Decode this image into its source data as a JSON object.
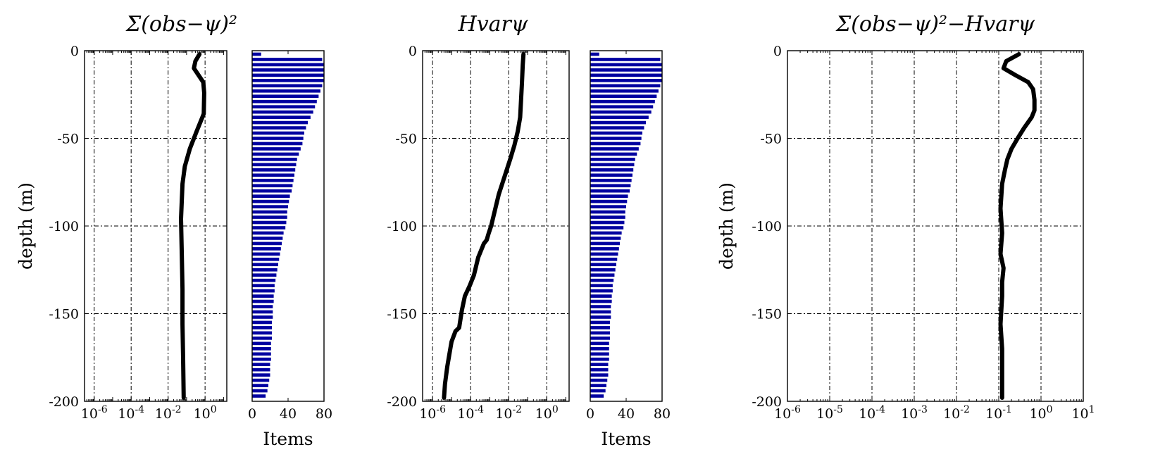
{
  "chart_data": [
    {
      "type": "line",
      "title": "Σ(obs−ψ)²",
      "xlabel": "",
      "ylabel": "depth (m)",
      "xscale": "log",
      "xlim": [
        3e-07,
        15
      ],
      "ylim": [
        -200,
        0
      ],
      "grid": true,
      "yticks": [
        "0",
        "-50",
        "-100",
        "-150",
        "-200"
      ],
      "xticks": [
        "10-6",
        "10-4",
        "10-2",
        "100"
      ],
      "series": [
        {
          "color": "#000000",
          "x": [
            0.5,
            0.3,
            0.25,
            0.45,
            0.8,
            0.9,
            0.85,
            0.35,
            0.15,
            0.08,
            0.06,
            0.05,
            0.055,
            0.06,
            0.06,
            0.065,
            0.07
          ],
          "y": [
            -2,
            -6,
            -10,
            -14,
            -18,
            -24,
            -36,
            -46,
            -56,
            -66,
            -76,
            -96,
            -116,
            -136,
            -156,
            -176,
            -198
          ]
        }
      ]
    },
    {
      "type": "bar",
      "orientation": "horizontal",
      "title": "",
      "xlabel": "Items",
      "ylabel": "",
      "xlim": [
        0,
        80
      ],
      "ylim": [
        -200,
        0
      ],
      "xticks": [
        "0",
        "40",
        "80"
      ],
      "color": "#0000a0",
      "depths": [
        -2,
        -5,
        -8,
        -11,
        -14,
        -17,
        -20,
        -23,
        -26,
        -29,
        -32,
        -35,
        -38,
        -41,
        -44,
        -47,
        -50,
        -53,
        -56,
        -59,
        -62,
        -65,
        -68,
        -71,
        -74,
        -77,
        -80,
        -83,
        -86,
        -89,
        -92,
        -95,
        -98,
        -101,
        -104,
        -107,
        -110,
        -113,
        -116,
        -119,
        -122,
        -125,
        -128,
        -131,
        -134,
        -137,
        -140,
        -143,
        -146,
        -149,
        -152,
        -155,
        -158,
        -161,
        -164,
        -167,
        -170,
        -173,
        -176,
        -179,
        -182,
        -185,
        -188,
        -191,
        -194,
        -197
      ],
      "values": [
        10,
        78,
        80,
        80,
        80,
        80,
        78,
        76,
        74,
        72,
        70,
        68,
        65,
        62,
        60,
        58,
        57,
        56,
        54,
        52,
        50,
        49,
        48,
        47,
        46,
        45,
        44,
        42,
        41,
        40,
        39,
        39,
        38,
        37,
        35,
        34,
        33,
        32,
        31,
        30,
        29,
        28,
        27,
        26,
        25,
        25,
        24,
        24,
        23,
        23,
        23,
        22,
        22,
        22,
        22,
        21,
        21,
        21,
        21,
        20,
        20,
        20,
        19,
        18,
        17,
        15
      ]
    },
    {
      "type": "line",
      "title": "Hvarψ",
      "xlabel": "",
      "ylabel": "",
      "xscale": "log",
      "xlim": [
        3e-07,
        15
      ],
      "ylim": [
        -200,
        0
      ],
      "grid": true,
      "yticks": [
        "0",
        "-50",
        "-100",
        "-150",
        "-200"
      ],
      "xticks": [
        "10-6",
        "10-4",
        "10-2",
        "100"
      ],
      "series": [
        {
          "color": "#000000",
          "x": [
            0.06,
            0.055,
            0.05,
            0.045,
            0.04,
            0.03,
            0.02,
            0.012,
            0.006,
            0.003,
            0.0018,
            0.0012,
            0.0009,
            0.0007,
            0.0005,
            0.00025,
            0.00015,
            9e-05,
            5e-05,
            3.5e-05,
            2.5e-05,
            1.6e-05,
            1e-05,
            8e-06,
            6e-06,
            4.5e-06,
            4e-06
          ],
          "y": [
            -2,
            -8,
            -18,
            -28,
            -38,
            -46,
            -54,
            -62,
            -72,
            -82,
            -92,
            -100,
            -104,
            -108,
            -110,
            -118,
            -128,
            -134,
            -140,
            -148,
            -158,
            -160,
            -166,
            -172,
            -180,
            -190,
            -198
          ]
        }
      ]
    },
    {
      "type": "bar",
      "orientation": "horizontal",
      "title": "",
      "xlabel": "Items",
      "ylabel": "",
      "xlim": [
        0,
        80
      ],
      "ylim": [
        -200,
        0
      ],
      "xticks": [
        "0",
        "40",
        "80"
      ],
      "color": "#0000a0",
      "depths": [
        -2,
        -5,
        -8,
        -11,
        -14,
        -17,
        -20,
        -23,
        -26,
        -29,
        -32,
        -35,
        -38,
        -41,
        -44,
        -47,
        -50,
        -53,
        -56,
        -59,
        -62,
        -65,
        -68,
        -71,
        -74,
        -77,
        -80,
        -83,
        -86,
        -89,
        -92,
        -95,
        -98,
        -101,
        -104,
        -107,
        -110,
        -113,
        -116,
        -119,
        -122,
        -125,
        -128,
        -131,
        -134,
        -137,
        -140,
        -143,
        -146,
        -149,
        -152,
        -155,
        -158,
        -161,
        -164,
        -167,
        -170,
        -173,
        -176,
        -179,
        -182,
        -185,
        -188,
        -191,
        -194,
        -197
      ],
      "values": [
        10,
        78,
        80,
        80,
        80,
        80,
        78,
        76,
        74,
        72,
        70,
        68,
        65,
        62,
        60,
        58,
        57,
        56,
        54,
        52,
        50,
        49,
        48,
        47,
        46,
        45,
        44,
        42,
        41,
        40,
        39,
        39,
        38,
        37,
        35,
        34,
        33,
        32,
        31,
        30,
        29,
        28,
        27,
        26,
        25,
        25,
        24,
        24,
        23,
        23,
        23,
        22,
        22,
        22,
        22,
        21,
        21,
        21,
        21,
        20,
        20,
        20,
        19,
        18,
        17,
        15
      ]
    },
    {
      "type": "line",
      "title": "Σ(obs−ψ)²−Hvarψ",
      "xlabel": "",
      "ylabel": "depth (m)",
      "xscale": "log",
      "xlim": [
        1e-06,
        10
      ],
      "ylim": [
        -200,
        0
      ],
      "grid": true,
      "yticks": [
        "0",
        "-50",
        "-100",
        "-150",
        "-200"
      ],
      "xticks": [
        "10-6",
        "10-5",
        "10-4",
        "10-3",
        "10-2",
        "10-1",
        "100",
        "101"
      ],
      "series": [
        {
          "color": "#000000",
          "x": [
            0.3,
            0.15,
            0.13,
            0.25,
            0.5,
            0.65,
            0.7,
            0.7,
            0.6,
            0.4,
            0.28,
            0.2,
            0.16,
            0.14,
            0.12,
            0.11,
            0.12,
            0.11,
            0.13,
            0.12,
            0.12,
            0.11,
            0.12,
            0.12,
            0.12
          ],
          "y": [
            -2,
            -6,
            -10,
            -14,
            -18,
            -22,
            -28,
            -34,
            -38,
            -44,
            -50,
            -56,
            -62,
            -68,
            -76,
            -90,
            -104,
            -116,
            -124,
            -132,
            -140,
            -156,
            -170,
            -186,
            -198
          ]
        }
      ]
    }
  ]
}
